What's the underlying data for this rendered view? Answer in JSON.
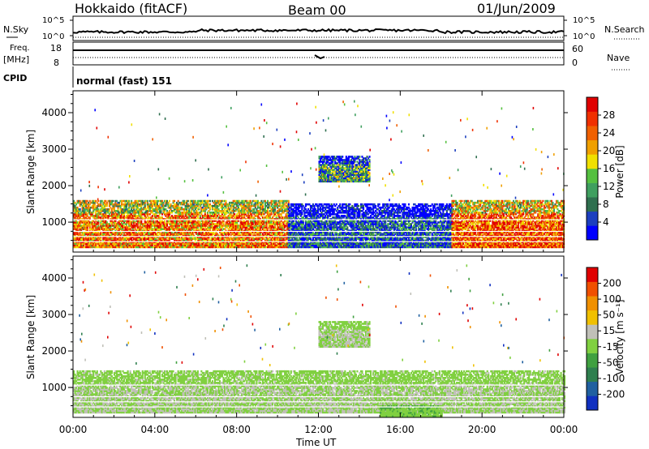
{
  "header": {
    "station": "Hokkaido (fitACF)",
    "beam": "Beam 00",
    "date": "01/Jun/2009"
  },
  "strip": {
    "nsky_label": "N.Sky",
    "nsky_ticks": [
      "10^5",
      "10^0"
    ],
    "nsearch_label": "N.Search",
    "nsearch_ticks": [
      "10^5",
      "10^0"
    ],
    "freq_label_1": "Freq.",
    "freq_label_2": "[MHz]",
    "freq_ticks": [
      "18",
      "8"
    ],
    "nave_label": "Nave",
    "nave_ticks": [
      "60",
      "0"
    ],
    "cpid_label": "CPID",
    "cpid_value": "normal (fast) 151"
  },
  "axes": {
    "ylabel": "Slant Range [km]",
    "yticks": [
      "4000",
      "3000",
      "2000",
      "1000"
    ],
    "xlabel": "Time UT",
    "xticks": [
      "00:00",
      "04:00",
      "08:00",
      "12:00",
      "16:00",
      "20:00",
      "00:00"
    ]
  },
  "colorbars": {
    "power": {
      "label": "Power [dB]",
      "ticks": [
        "28",
        "24",
        "20",
        "16",
        "12",
        "8",
        "4"
      ],
      "colors": [
        "#0000ff",
        "#1c3fbf",
        "#2f6f4f",
        "#3f9f5f",
        "#55c040",
        "#f0e000",
        "#f0a000",
        "#f06000",
        "#f03000",
        "#e00000"
      ]
    },
    "velocity": {
      "label": "Velocity [m s⁻¹]",
      "ticks": [
        "200",
        "100",
        "50",
        "15",
        "-15",
        "-50",
        "-100",
        "-200"
      ],
      "colors": [
        "#1030c0",
        "#2060a0",
        "#2f7f4f",
        "#40a040",
        "#80d040",
        "#c0c0b8",
        "#f0c000",
        "#f09000",
        "#f05000",
        "#e00000"
      ]
    }
  },
  "chart_data": [
    {
      "type": "heatmap",
      "title": "Power",
      "xlabel": "Time UT",
      "ylabel": "Slant Range [km]",
      "xlim": [
        "00:00",
        "24:00"
      ],
      "ylim": [
        180,
        4600
      ],
      "zlabel": "Power [dB]",
      "zlim": [
        0,
        30
      ],
      "regions": [
        {
          "t_start": 0.0,
          "t_end": 10.5,
          "range_min": 300,
          "range_max": 1600,
          "value": 22
        },
        {
          "t_start": 10.5,
          "t_end": 18.5,
          "range_min": 300,
          "range_max": 1500,
          "value": 6
        },
        {
          "t_start": 18.5,
          "t_end": 24.0,
          "range_min": 300,
          "range_max": 1600,
          "value": 24
        },
        {
          "t_start": 12.0,
          "t_end": 14.5,
          "range_min": 2100,
          "range_max": 2800,
          "value": 10
        }
      ]
    },
    {
      "type": "heatmap",
      "title": "Velocity",
      "xlabel": "Time UT",
      "ylabel": "Slant Range [km]",
      "xlim": [
        "00:00",
        "24:00"
      ],
      "ylim": [
        180,
        4600
      ],
      "zlabel": "Velocity [m s⁻¹]",
      "zlim": [
        -250,
        250
      ],
      "regions": [
        {
          "t_start": 0.0,
          "t_end": 24.0,
          "range_min": 300,
          "range_max": 1450,
          "value": 0
        },
        {
          "t_start": 12.0,
          "t_end": 14.5,
          "range_min": 2100,
          "range_max": 2800,
          "value": 0
        },
        {
          "t_start": 15.0,
          "t_end": 18.0,
          "range_min": 200,
          "range_max": 500,
          "value": -40
        }
      ]
    }
  ]
}
